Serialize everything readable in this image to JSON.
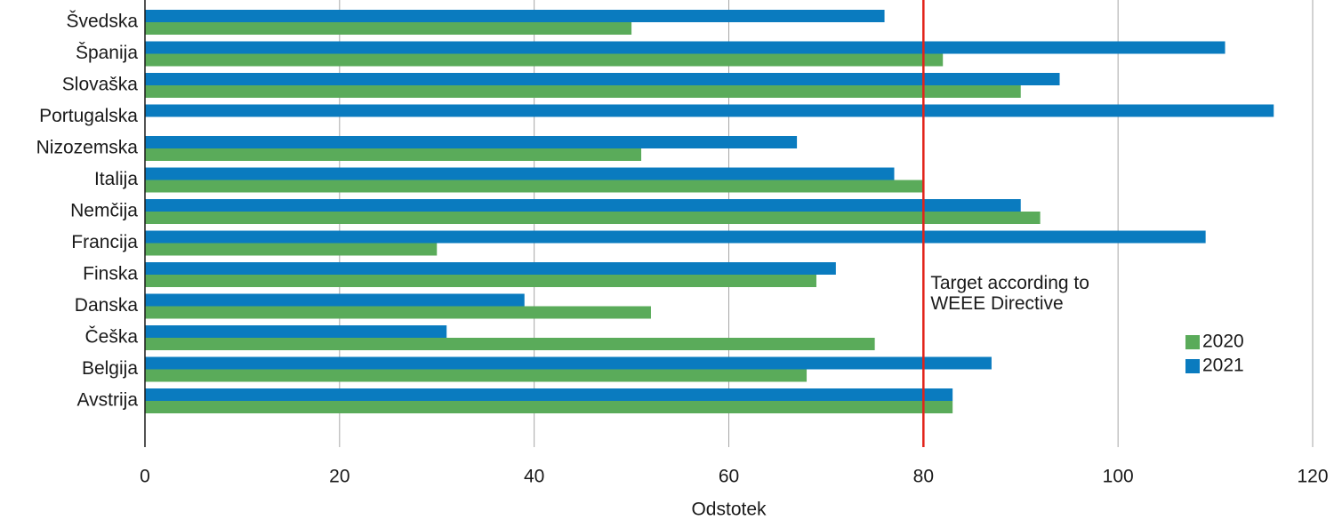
{
  "chart_data": {
    "type": "bar",
    "orientation": "horizontal",
    "categories": [
      "Švedska",
      "Španija",
      "Slovaška",
      "Portugalska",
      "Nizozemska",
      "Italija",
      "Nemčija",
      "Francija",
      "Finska",
      "Danska",
      "Češka",
      "Belgija",
      "Avstrija"
    ],
    "series": [
      {
        "name": "2021",
        "color": "#0a7bbf",
        "values": [
          76,
          111,
          94,
          116,
          67,
          77,
          90,
          109,
          71,
          39,
          31,
          87,
          83
        ]
      },
      {
        "name": "2020",
        "color": "#5aab5a",
        "values": [
          50,
          82,
          90,
          null,
          51,
          80,
          92,
          30,
          69,
          52,
          75,
          68,
          83
        ]
      }
    ],
    "xlabel": "Odstotek",
    "ylabel": "",
    "xlim": [
      0,
      120
    ],
    "xticks": [
      0,
      20,
      40,
      60,
      80,
      100,
      120
    ],
    "grid": "vertical",
    "legend": {
      "placement": "right",
      "items": [
        "2020",
        "2021"
      ]
    },
    "reference_line": {
      "value": 80,
      "color": "#e2231a",
      "label_lines": [
        "Target according to",
        "WEEE Directive"
      ]
    }
  }
}
